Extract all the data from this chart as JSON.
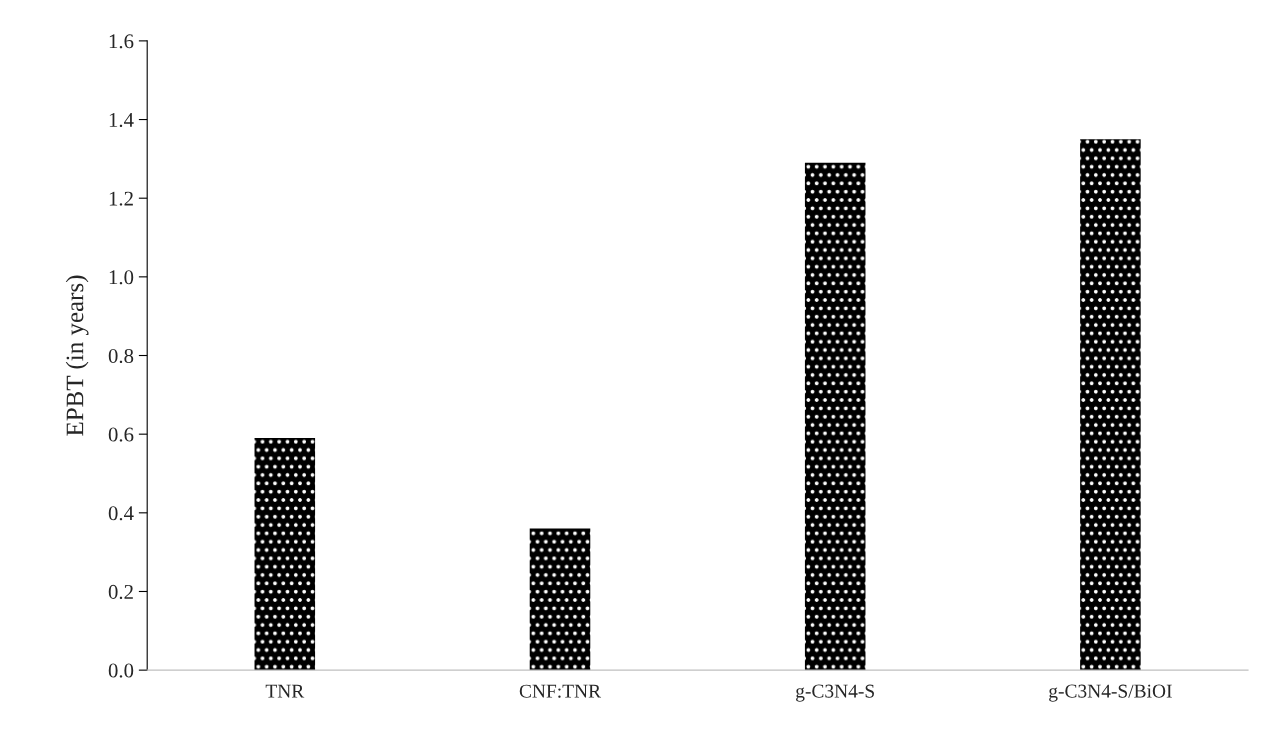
{
  "chart_data": {
    "type": "bar",
    "ylabel": "EPBT (in years)",
    "categories": [
      "TNR",
      "CNF:TNR",
      "g-C3N4-S",
      "g-C3N4-S/BiOI"
    ],
    "values": [
      0.59,
      0.36,
      1.29,
      1.35
    ],
    "color": "#000000",
    "ylim": [
      0,
      1.6
    ],
    "yticks": [
      {
        "value": 0,
        "label": "0.0"
      },
      {
        "value": 0.2,
        "label": "0.2"
      },
      {
        "value": 0.4,
        "label": "0.4"
      },
      {
        "value": 0.6,
        "label": "0.6"
      },
      {
        "value": 0.8,
        "label": "0.8"
      },
      {
        "value": 1.0,
        "label": "1.0"
      },
      {
        "value": 1.2,
        "label": "1.2"
      },
      {
        "value": 1.4,
        "label": "1.4"
      },
      {
        "value": 1.6,
        "label": "1.6"
      }
    ],
    "grid": false
  }
}
